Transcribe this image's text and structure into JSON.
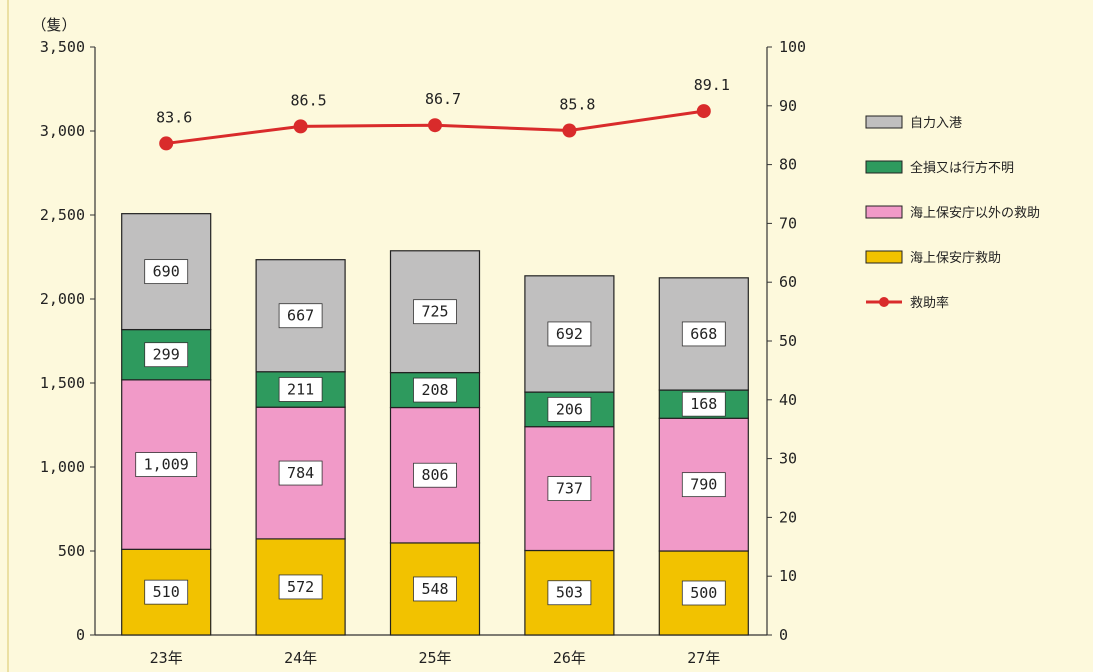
{
  "chart_data": {
    "type": "bar",
    "stacked": true,
    "unit_label": "（隻）",
    "categories": [
      "23年",
      "24年",
      "25年",
      "26年",
      "27年"
    ],
    "series": [
      {
        "name": "海上保安庁救助",
        "color": "#f2c200",
        "values": [
          510,
          572,
          548,
          503,
          500
        ]
      },
      {
        "name": "海上保安庁以外の救助",
        "color": "#f19ac8",
        "values": [
          1009,
          784,
          806,
          737,
          790
        ]
      },
      {
        "name": "全損又は行方不明",
        "color": "#2e9a5e",
        "values": [
          299,
          211,
          208,
          206,
          168
        ]
      },
      {
        "name": "自力入港",
        "color": "#c0bfbf",
        "values": [
          690,
          667,
          725,
          692,
          668
        ]
      }
    ],
    "line_series": {
      "name": "救助率",
      "color": "#d92b2b",
      "axis": "right",
      "values": [
        83.6,
        86.5,
        86.7,
        85.8,
        89.1
      ],
      "labels": [
        "83.6",
        "86.5",
        "86.7",
        "85.8",
        "89.1"
      ]
    },
    "left_axis": {
      "ylim": [
        0,
        3500
      ],
      "ticks": [
        0,
        500,
        1000,
        1500,
        2000,
        2500,
        3000,
        3500
      ],
      "tick_labels": [
        "0",
        "500",
        "1,000",
        "1,500",
        "2,000",
        "2,500",
        "3,000",
        "3,500"
      ]
    },
    "right_axis": {
      "ylim": [
        0,
        100
      ],
      "ticks": [
        0,
        10,
        20,
        30,
        40,
        50,
        60,
        70,
        80,
        90,
        100
      ],
      "tick_labels": [
        "0",
        "10",
        "20",
        "30",
        "40",
        "50",
        "60",
        "70",
        "80",
        "90",
        "100"
      ]
    },
    "bar_labels": [
      [
        "510",
        "1,009",
        "299",
        "690"
      ],
      [
        "572",
        "784",
        "211",
        "667"
      ],
      [
        "548",
        "806",
        "208",
        "725"
      ],
      [
        "503",
        "737",
        "206",
        "692"
      ],
      [
        "500",
        "790",
        "168",
        "668"
      ]
    ],
    "legend": {
      "position": "right",
      "items": [
        "自力入港",
        "全損又は行方不明",
        "海上保安庁以外の救助",
        "海上保安庁救助",
        "救助率"
      ]
    },
    "grid": false
  }
}
